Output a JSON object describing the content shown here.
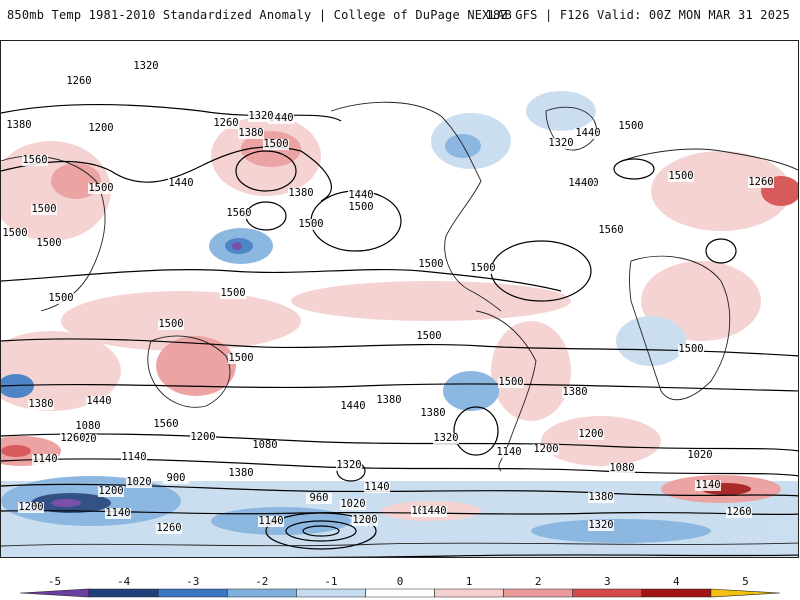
{
  "header": {
    "left_title": "850mb Temp 1981-2010 Standardized Anomaly | College of DuPage NEXLAB",
    "right_title": "18Z GFS | F126 Valid: 00Z MON MAR 31 2025"
  },
  "map": {
    "projection": "global cylindrical",
    "contour_labels": [
      "1320",
      "1260",
      "1380",
      "1440",
      "1200",
      "1260",
      "1320",
      "1380",
      "1500",
      "1560",
      "1500",
      "1500",
      "1560",
      "1440",
      "1380",
      "1440",
      "1500",
      "1500",
      "1500",
      "1500",
      "1500",
      "1500",
      "1500",
      "1500",
      "1500",
      "1500",
      "1380",
      "1440",
      "1380",
      "1320",
      "1560",
      "1440",
      "1380",
      "1500",
      "1500",
      "1560",
      "1500",
      "1500",
      "1380",
      "1440",
      "1500",
      "1320",
      "1140",
      "1440",
      "1260",
      "1200",
      "1080",
      "1320",
      "1260",
      "1200",
      "1080",
      "1140",
      "1140",
      "1200",
      "1020",
      "900",
      "960",
      "1020",
      "1140",
      "1080",
      "1380",
      "1320",
      "1200",
      "1140",
      "1260",
      "1140",
      "1200",
      "1440",
      "1200",
      "1080",
      "1020",
      "1140",
      "1260",
      "1380",
      "1320",
      "1140"
    ],
    "colors": {
      "neg5": "#6b3fa0",
      "neg4": "#1f3f7a",
      "neg3": "#3a78c0",
      "neg2": "#7fb0dd",
      "neg1": "#c5dbef",
      "pos1": "#f4cfcf",
      "pos2": "#eb9a9a",
      "pos3": "#d44a4a",
      "pos4": "#a11414",
      "pos5": "#f3c20f"
    }
  },
  "legend": {
    "ticks": [
      "-5",
      "-4",
      "-3",
      "-2",
      "-1",
      "0",
      "1",
      "2",
      "3",
      "4",
      "5"
    ],
    "colors": [
      "#6b3fa0",
      "#1f3f7a",
      "#3a78c0",
      "#7fb0dd",
      "#c5dbef",
      "#ffffff",
      "#f4cfcf",
      "#eb9a9a",
      "#d44a4a",
      "#a11414",
      "#f3c20f"
    ]
  }
}
